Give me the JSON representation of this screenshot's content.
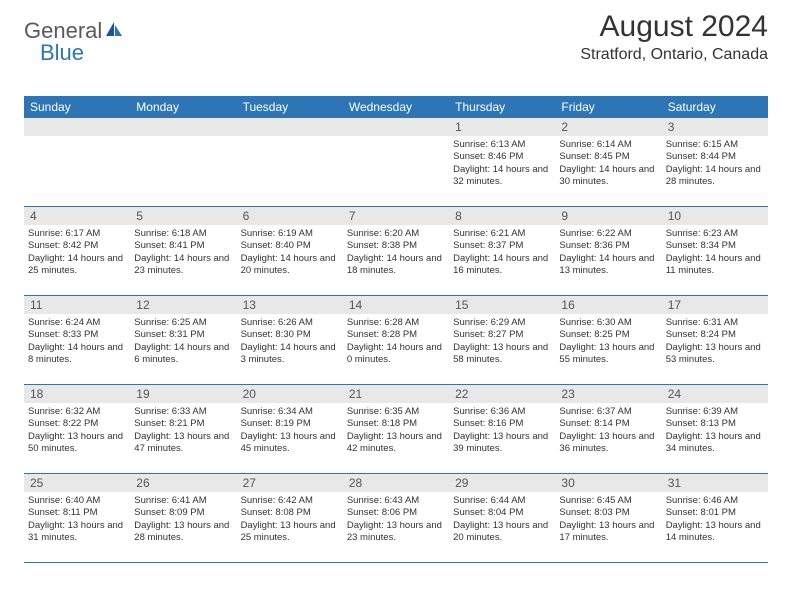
{
  "logo": {
    "part1": "General",
    "part2": "Blue"
  },
  "heading": {
    "month_year": "August 2024",
    "location": "Stratford, Ontario, Canada"
  },
  "calendar": {
    "header_bg": "#2e75b6",
    "header_fg": "#ffffff",
    "daynum_bg": "#e8e8e8",
    "border_color": "#2e75b6",
    "days_of_week": [
      "Sunday",
      "Monday",
      "Tuesday",
      "Wednesday",
      "Thursday",
      "Friday",
      "Saturday"
    ],
    "weeks": [
      [
        null,
        null,
        null,
        null,
        {
          "n": "1",
          "sunrise": "6:13 AM",
          "sunset": "8:46 PM",
          "dl": "14 hours and 32 minutes."
        },
        {
          "n": "2",
          "sunrise": "6:14 AM",
          "sunset": "8:45 PM",
          "dl": "14 hours and 30 minutes."
        },
        {
          "n": "3",
          "sunrise": "6:15 AM",
          "sunset": "8:44 PM",
          "dl": "14 hours and 28 minutes."
        }
      ],
      [
        {
          "n": "4",
          "sunrise": "6:17 AM",
          "sunset": "8:42 PM",
          "dl": "14 hours and 25 minutes."
        },
        {
          "n": "5",
          "sunrise": "6:18 AM",
          "sunset": "8:41 PM",
          "dl": "14 hours and 23 minutes."
        },
        {
          "n": "6",
          "sunrise": "6:19 AM",
          "sunset": "8:40 PM",
          "dl": "14 hours and 20 minutes."
        },
        {
          "n": "7",
          "sunrise": "6:20 AM",
          "sunset": "8:38 PM",
          "dl": "14 hours and 18 minutes."
        },
        {
          "n": "8",
          "sunrise": "6:21 AM",
          "sunset": "8:37 PM",
          "dl": "14 hours and 16 minutes."
        },
        {
          "n": "9",
          "sunrise": "6:22 AM",
          "sunset": "8:36 PM",
          "dl": "14 hours and 13 minutes."
        },
        {
          "n": "10",
          "sunrise": "6:23 AM",
          "sunset": "8:34 PM",
          "dl": "14 hours and 11 minutes."
        }
      ],
      [
        {
          "n": "11",
          "sunrise": "6:24 AM",
          "sunset": "8:33 PM",
          "dl": "14 hours and 8 minutes."
        },
        {
          "n": "12",
          "sunrise": "6:25 AM",
          "sunset": "8:31 PM",
          "dl": "14 hours and 6 minutes."
        },
        {
          "n": "13",
          "sunrise": "6:26 AM",
          "sunset": "8:30 PM",
          "dl": "14 hours and 3 minutes."
        },
        {
          "n": "14",
          "sunrise": "6:28 AM",
          "sunset": "8:28 PM",
          "dl": "14 hours and 0 minutes."
        },
        {
          "n": "15",
          "sunrise": "6:29 AM",
          "sunset": "8:27 PM",
          "dl": "13 hours and 58 minutes."
        },
        {
          "n": "16",
          "sunrise": "6:30 AM",
          "sunset": "8:25 PM",
          "dl": "13 hours and 55 minutes."
        },
        {
          "n": "17",
          "sunrise": "6:31 AM",
          "sunset": "8:24 PM",
          "dl": "13 hours and 53 minutes."
        }
      ],
      [
        {
          "n": "18",
          "sunrise": "6:32 AM",
          "sunset": "8:22 PM",
          "dl": "13 hours and 50 minutes."
        },
        {
          "n": "19",
          "sunrise": "6:33 AM",
          "sunset": "8:21 PM",
          "dl": "13 hours and 47 minutes."
        },
        {
          "n": "20",
          "sunrise": "6:34 AM",
          "sunset": "8:19 PM",
          "dl": "13 hours and 45 minutes."
        },
        {
          "n": "21",
          "sunrise": "6:35 AM",
          "sunset": "8:18 PM",
          "dl": "13 hours and 42 minutes."
        },
        {
          "n": "22",
          "sunrise": "6:36 AM",
          "sunset": "8:16 PM",
          "dl": "13 hours and 39 minutes."
        },
        {
          "n": "23",
          "sunrise": "6:37 AM",
          "sunset": "8:14 PM",
          "dl": "13 hours and 36 minutes."
        },
        {
          "n": "24",
          "sunrise": "6:39 AM",
          "sunset": "8:13 PM",
          "dl": "13 hours and 34 minutes."
        }
      ],
      [
        {
          "n": "25",
          "sunrise": "6:40 AM",
          "sunset": "8:11 PM",
          "dl": "13 hours and 31 minutes."
        },
        {
          "n": "26",
          "sunrise": "6:41 AM",
          "sunset": "8:09 PM",
          "dl": "13 hours and 28 minutes."
        },
        {
          "n": "27",
          "sunrise": "6:42 AM",
          "sunset": "8:08 PM",
          "dl": "13 hours and 25 minutes."
        },
        {
          "n": "28",
          "sunrise": "6:43 AM",
          "sunset": "8:06 PM",
          "dl": "13 hours and 23 minutes."
        },
        {
          "n": "29",
          "sunrise": "6:44 AM",
          "sunset": "8:04 PM",
          "dl": "13 hours and 20 minutes."
        },
        {
          "n": "30",
          "sunrise": "6:45 AM",
          "sunset": "8:03 PM",
          "dl": "13 hours and 17 minutes."
        },
        {
          "n": "31",
          "sunrise": "6:46 AM",
          "sunset": "8:01 PM",
          "dl": "13 hours and 14 minutes."
        }
      ]
    ]
  }
}
